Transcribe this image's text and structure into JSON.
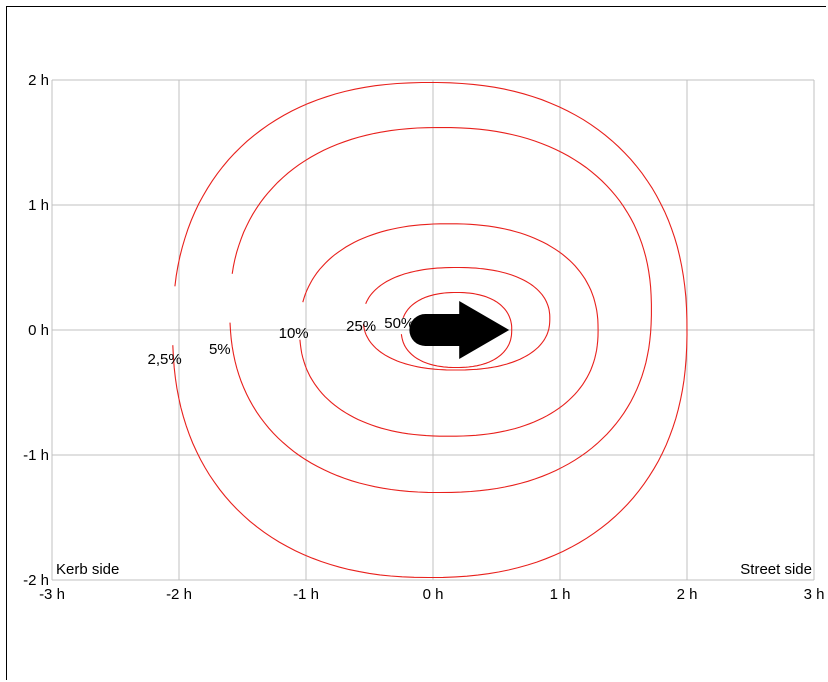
{
  "chart_data": {
    "type": "contour",
    "title": "",
    "xlabel": "",
    "ylabel": "",
    "xlim": [
      -3,
      3
    ],
    "ylim": [
      -2,
      2
    ],
    "x_ticks": [
      -3,
      -2,
      -1,
      0,
      1,
      2,
      3
    ],
    "y_ticks": [
      -2,
      -1,
      0,
      1,
      2
    ],
    "x_tick_labels": [
      "-3 h",
      "-2 h",
      "-1 h",
      "0 h",
      "1 h",
      "2 h",
      "3 h"
    ],
    "y_tick_labels": [
      "-2 h",
      "-1 h",
      "0 h",
      "1 h",
      "2 h"
    ],
    "grid": true,
    "contour_color": "#e8201c",
    "contours": [
      {
        "label": "50%",
        "x_left": -0.25,
        "x_right": 0.62,
        "y_top": 0.3,
        "y_bottom": -0.3
      },
      {
        "label": "25%",
        "x_left": -0.55,
        "x_right": 0.92,
        "y_top": 0.5,
        "y_bottom": -0.32
      },
      {
        "label": "10%",
        "x_left": -1.05,
        "x_right": 1.3,
        "y_top": 0.85,
        "y_bottom": -0.85
      },
      {
        "label": "5%",
        "x_left": -1.6,
        "x_right": 1.72,
        "y_top": 1.62,
        "y_bottom": -1.3
      },
      {
        "label": "2,5%",
        "x_left": -2.05,
        "x_right": 2.0,
        "y_top": 1.98,
        "y_bottom": -1.98
      }
    ],
    "annotations": {
      "kerb_side": "Kerb side",
      "street_side": "Street side"
    },
    "arrow": {
      "direction": "right",
      "color": "#000000",
      "x_start": -0.06,
      "x_end": 0.6,
      "y": 0
    }
  }
}
